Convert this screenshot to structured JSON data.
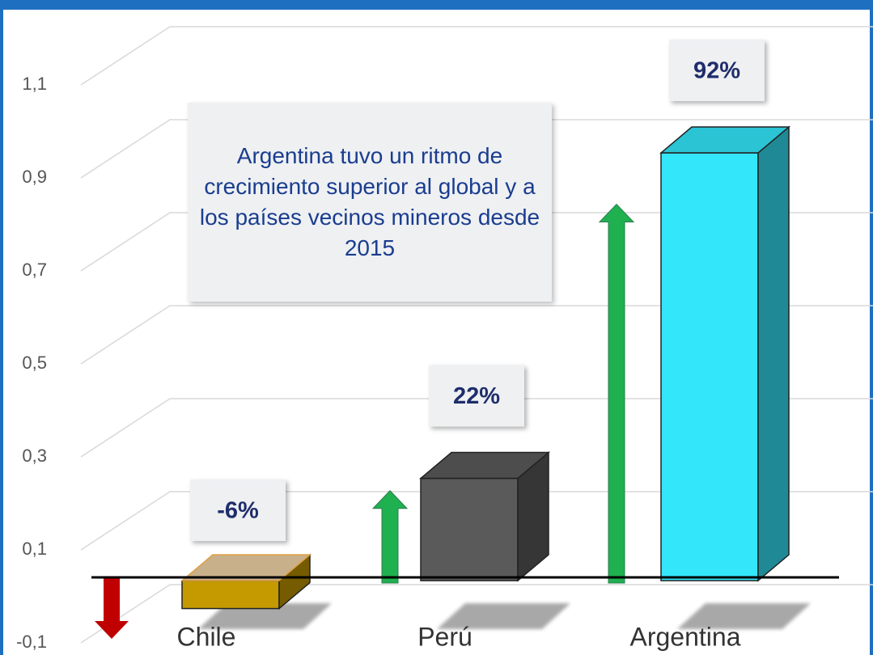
{
  "chart_data": {
    "type": "bar",
    "categories": [
      "Chile",
      "Perú",
      "Argentina"
    ],
    "values": [
      -0.06,
      0.22,
      0.92
    ],
    "value_labels": [
      "-6%",
      "22%",
      "92%"
    ],
    "colors": [
      "#c49a00",
      "#5a5a5a",
      "#33e6fa"
    ],
    "ylim": [
      -0.1,
      1.1
    ],
    "yticks": [
      {
        "value": -0.1,
        "label": "-0,1"
      },
      {
        "value": 0.1,
        "label": "0,1"
      },
      {
        "value": 0.3,
        "label": "0,3"
      },
      {
        "value": 0.5,
        "label": "0,5"
      },
      {
        "value": 0.7,
        "label": "0,7"
      },
      {
        "value": 0.9,
        "label": "0,9"
      },
      {
        "value": 1.1,
        "label": "1,1"
      }
    ],
    "grid": true,
    "annotation": "Argentina tuvo un ritmo de crecimiento superior al global y a los países vecinos mineros desde 2015"
  }
}
